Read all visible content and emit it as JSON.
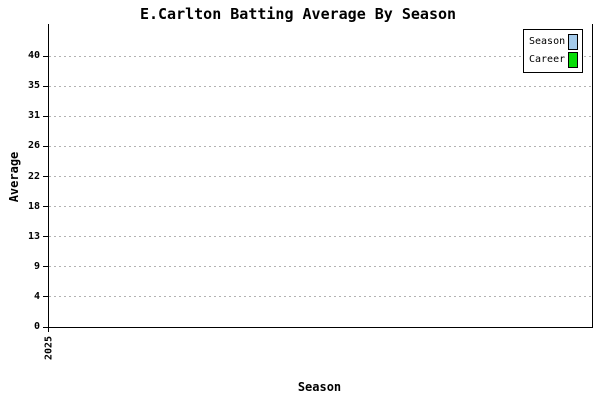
{
  "window": {
    "background_color": "#ffffff"
  },
  "chart_data": {
    "type": "line",
    "title": "E.Carlton Batting Average By Season",
    "xlabel": "Season",
    "ylabel": "Average",
    "x_tick_labels": [
      "2025"
    ],
    "y_tick_labels": [
      "0",
      "4",
      "9",
      "13",
      "18",
      "22",
      "26",
      "31",
      "35",
      "40"
    ],
    "ylim": [
      0,
      45
    ],
    "grid": "horizontal-dashed",
    "grid_color": "#b3b3b3",
    "axis_color": "#000000",
    "legend_position": "top-right",
    "legend_border_color": "#000000",
    "series": [
      {
        "name": "Season",
        "color": "#a5cbeb",
        "values": []
      },
      {
        "name": "Career",
        "color": "#06dc06",
        "values": []
      }
    ]
  }
}
